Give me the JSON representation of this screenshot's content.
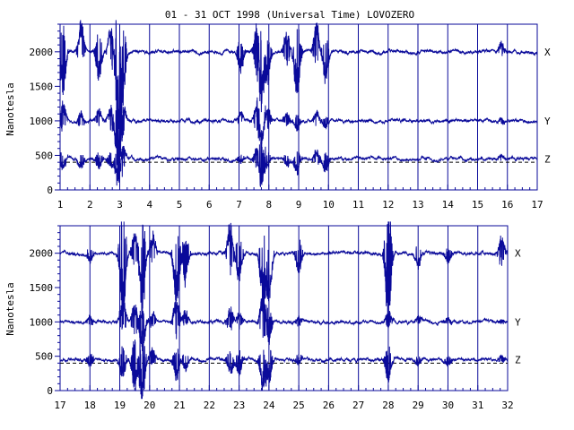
{
  "title": "01 - 31 OCT 1998 (Universal Time) LOVOZERO",
  "ylabel": "Nanotesla",
  "colors": {
    "ink": "#0a0a9a",
    "background": "#ffffff"
  },
  "chart_data": [
    {
      "type": "line",
      "panel": "top",
      "xlim": [
        1,
        17
      ],
      "ylim": [
        0,
        2400
      ],
      "x_ticks": [
        1,
        2,
        3,
        4,
        5,
        6,
        7,
        8,
        9,
        10,
        11,
        12,
        13,
        14,
        15,
        16,
        17
      ],
      "y_ticks": [
        0,
        500,
        1000,
        1500,
        2000
      ],
      "grid": "vertical lines at each day",
      "reference_line": {
        "y": 400,
        "style": "dashed"
      },
      "series": [
        {
          "name": "X",
          "baseline": 2000
        },
        {
          "name": "Y",
          "baseline": 1000
        },
        {
          "name": "Z",
          "baseline": 450
        }
      ],
      "disturbances": [
        {
          "day": 1.1,
          "x": -400,
          "y": 200,
          "z": -150
        },
        {
          "day": 1.7,
          "x": 300,
          "y": 100,
          "z": -100
        },
        {
          "day": 2.3,
          "x": -300,
          "y": 120,
          "z": -120
        },
        {
          "day": 2.7,
          "x": 300,
          "y": 150,
          "z": -100
        },
        {
          "day": 2.95,
          "x": -800,
          "y": -500,
          "z": -300
        },
        {
          "day": 3.1,
          "x": -500,
          "y": 200,
          "z": 150
        },
        {
          "day": 7.05,
          "x": -200,
          "y": 80,
          "z": -60
        },
        {
          "day": 7.6,
          "x": 300,
          "y": 200,
          "z": 150
        },
        {
          "day": 7.75,
          "x": -500,
          "y": -250,
          "z": -300
        },
        {
          "day": 7.95,
          "x": -300,
          "y": 150,
          "z": -100
        },
        {
          "day": 8.6,
          "x": 200,
          "y": 80,
          "z": -80
        },
        {
          "day": 8.95,
          "x": -450,
          "y": -100,
          "z": -150
        },
        {
          "day": 9.6,
          "x": 300,
          "y": 100,
          "z": 100
        },
        {
          "day": 9.9,
          "x": -300,
          "y": -80,
          "z": -120
        },
        {
          "day": 15.8,
          "x": 100,
          "y": 40,
          "z": 50
        }
      ]
    },
    {
      "type": "line",
      "panel": "bottom",
      "xlim": [
        17,
        32
      ],
      "ylim": [
        0,
        2400
      ],
      "x_ticks": [
        17,
        18,
        19,
        20,
        21,
        22,
        23,
        24,
        25,
        26,
        27,
        28,
        29,
        30,
        31,
        32
      ],
      "y_ticks": [
        0,
        500,
        1000,
        1500,
        2000
      ],
      "grid": "vertical lines at each day",
      "reference_line": {
        "y": 400,
        "style": "dashed"
      },
      "series": [
        {
          "name": "X",
          "baseline": 2000
        },
        {
          "name": "Y",
          "baseline": 1000
        },
        {
          "name": "Z",
          "baseline": 450
        }
      ],
      "disturbances": [
        {
          "day": 18.0,
          "x": -100,
          "y": 60,
          "z": -80
        },
        {
          "day": 19.1,
          "x": -700,
          "y": 250,
          "z": -200
        },
        {
          "day": 19.5,
          "x": 200,
          "y": 200,
          "z": -300
        },
        {
          "day": 19.75,
          "x": -600,
          "y": -300,
          "z": -450
        },
        {
          "day": 20.1,
          "x": 200,
          "y": 100,
          "z": 100
        },
        {
          "day": 20.9,
          "x": -500,
          "y": 250,
          "z": -200
        },
        {
          "day": 21.2,
          "x": -300,
          "y": 100,
          "z": -120
        },
        {
          "day": 22.7,
          "x": 300,
          "y": 150,
          "z": -150
        },
        {
          "day": 23.0,
          "x": -300,
          "y": 100,
          "z": -150
        },
        {
          "day": 23.8,
          "x": -550,
          "y": 300,
          "z": -300
        },
        {
          "day": 24.0,
          "x": -500,
          "y": -200,
          "z": -250
        },
        {
          "day": 25.0,
          "x": -200,
          "y": 60,
          "z": -70
        },
        {
          "day": 28.0,
          "x": -700,
          "y": 100,
          "z": -250
        },
        {
          "day": 29.0,
          "x": -150,
          "y": 50,
          "z": -60
        },
        {
          "day": 30.0,
          "x": -100,
          "y": 40,
          "z": -70
        },
        {
          "day": 31.8,
          "x": 200,
          "y": 30,
          "z": 50
        }
      ]
    }
  ]
}
